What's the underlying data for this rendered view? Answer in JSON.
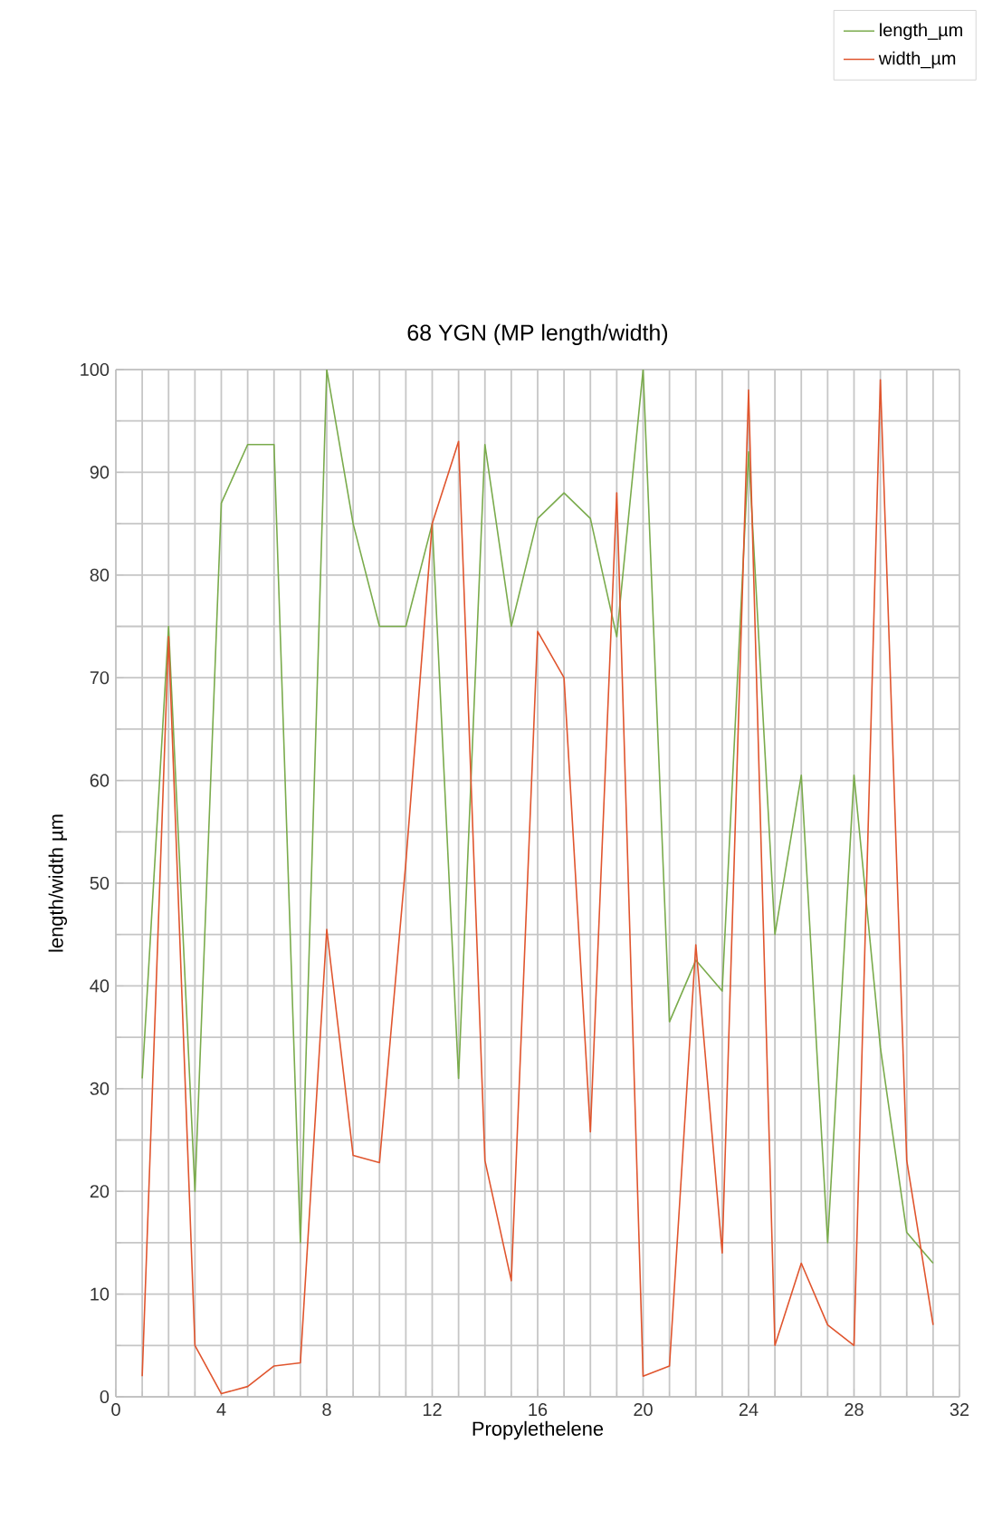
{
  "chart_data": {
    "type": "line",
    "title": "68 YGN (MP length/width)",
    "xlabel": "Propylethelene",
    "ylabel": "length/width µm",
    "x": [
      1,
      2,
      3,
      4,
      5,
      6,
      7,
      8,
      9,
      10,
      11,
      12,
      13,
      14,
      15,
      16,
      17,
      18,
      19,
      20,
      21,
      22,
      23,
      24,
      25,
      26,
      27,
      28,
      29,
      30,
      31
    ],
    "series": [
      {
        "name": "length_µm",
        "color": "#7aab4c",
        "values": [
          31,
          75,
          20,
          87,
          92.7,
          92.7,
          15,
          100,
          85,
          75,
          75,
          85,
          31,
          92.7,
          75,
          85.5,
          88,
          85.5,
          74,
          100,
          36.5,
          42.5,
          39.5,
          92,
          45,
          60.5,
          15,
          60.5,
          34,
          16,
          13
        ]
      },
      {
        "name": "width_µm",
        "color": "#e0552e",
        "values": [
          2,
          74,
          5,
          0.3,
          1,
          3,
          3.3,
          45.5,
          23.5,
          22.8,
          52,
          85,
          93,
          23,
          11.3,
          74.5,
          70,
          25.8,
          88,
          2,
          3,
          44,
          14,
          98,
          5,
          13,
          7,
          5,
          99,
          23,
          7
        ]
      }
    ],
    "xlim": [
      0,
      32
    ],
    "xticks": [
      0,
      4,
      8,
      12,
      16,
      20,
      24,
      28,
      32
    ],
    "ylim": [
      0,
      100
    ],
    "yticks": [
      0,
      10,
      20,
      30,
      40,
      50,
      60,
      70,
      80,
      90,
      100
    ],
    "grid": true,
    "legend": "top right",
    "marker": "none",
    "line_style": "solid"
  }
}
